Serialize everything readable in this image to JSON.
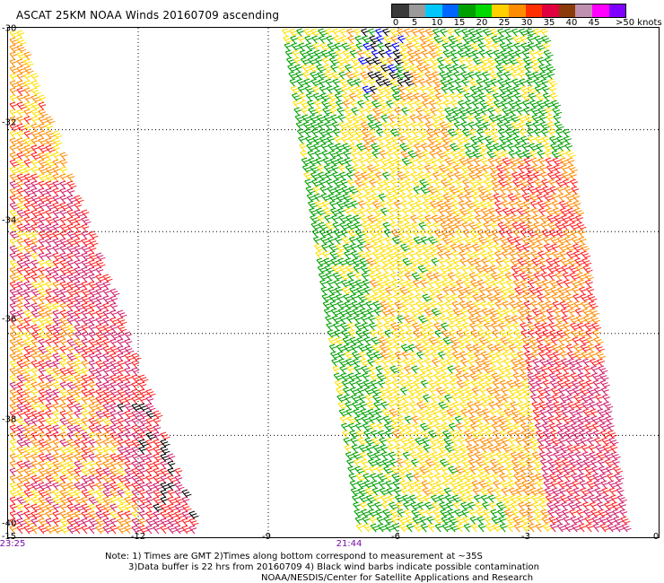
{
  "title": "ASCAT 25KM NOAA Winds 20160709 ascending",
  "legend": {
    "unit": ">50 knots",
    "labels": [
      "0",
      "5",
      "10",
      "15",
      "20",
      "25",
      "30",
      "35",
      "40",
      "45"
    ],
    "colors": [
      "#3a3a3a",
      "#9a9a9a",
      "#00c8ff",
      "#0066ff",
      "#00a000",
      "#00d800",
      "#ffd000",
      "#ff8c00",
      "#ff3000",
      "#e00040",
      "#8b3a0a",
      "#c090b0",
      "#ff00ff",
      "#8000ff"
    ]
  },
  "axes": {
    "latitudes": [
      "-30",
      "-32",
      "-34",
      "-36",
      "-38",
      "-40"
    ],
    "longitudes": [
      "-15",
      "-12",
      "-9",
      "-6",
      "-3",
      "0"
    ],
    "times": [
      "23:25",
      "21:44"
    ]
  },
  "wind_color_scale": {
    "light": "#00a000",
    "moderate": "#ffe000",
    "fresh": "#ff8c00",
    "strong": "#ff2020",
    "very_strong": "#d0206a",
    "contaminated": "#000000",
    "low": "#0000ff"
  },
  "notes": [
    "Note: 1) Times are GMT 2)Times along bottom correspond to measurement at ~35S",
    "3)Data buffer is 22 hrs from 20160709 4) Black wind barbs indicate possible contamination",
    "NOAA/NESDIS/Center for Satellite Applications and Research"
  ]
}
